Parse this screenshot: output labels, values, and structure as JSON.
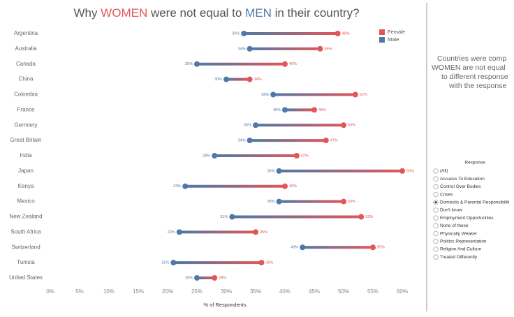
{
  "chart_data": {
    "type": "dumbbell",
    "title": [
      "Why ",
      "WOMEN",
      " were not equal to ",
      "MEN",
      " in their country?"
    ],
    "x_label": "% of Respondents",
    "categories": [
      "Argentina",
      "Australia",
      "Canada",
      "China",
      "Colombia",
      "France",
      "Germany",
      "Great Britain",
      "India",
      "Japan",
      "Kenya",
      "Mexico",
      "New Zealand",
      "South Africa",
      "Switzerland",
      "Tunisia",
      "United States"
    ],
    "series": [
      {
        "name": "Female",
        "color": "#e15759",
        "values": [
          49,
          46,
          40,
          34,
          52,
          45,
          50,
          47,
          42,
          60,
          40,
          50,
          53,
          35,
          55,
          36,
          28
        ],
        "value_labels": [
          "49%",
          "46%",
          "40%",
          "34%",
          "52%",
          "45%",
          "50%",
          "47%",
          "42%",
          "60%",
          "40%",
          "50%",
          "53%",
          "35%",
          "55%",
          "36%",
          "28%"
        ]
      },
      {
        "name": "Male",
        "color": "#4e79a7",
        "values": [
          33,
          34,
          25,
          30,
          38,
          40,
          35,
          34,
          28,
          39,
          23,
          39,
          31,
          22,
          43,
          21,
          25
        ],
        "value_labels": [
          "33%",
          "34%",
          "25%",
          "30%",
          "38%",
          "40%",
          "35%",
          "34%",
          "28%",
          "39%",
          "23%",
          "39%",
          "31%",
          "22%",
          "43%",
          "21%",
          "25%"
        ]
      }
    ],
    "xlim": [
      0,
      60
    ],
    "xticks": [
      {
        "value": 0,
        "label": "0%"
      },
      {
        "value": 5,
        "label": "5%"
      },
      {
        "value": 10,
        "label": "10%"
      },
      {
        "value": 15,
        "label": "15%"
      },
      {
        "value": 20,
        "label": "20%"
      },
      {
        "value": 25,
        "label": "25%"
      },
      {
        "value": 30,
        "label": "30%"
      },
      {
        "value": 35,
        "label": "35%"
      },
      {
        "value": 40,
        "label": "40%"
      },
      {
        "value": 45,
        "label": "45%"
      },
      {
        "value": 50,
        "label": "50%"
      },
      {
        "value": 55,
        "label": "55%"
      },
      {
        "value": 60,
        "label": "60%"
      }
    ],
    "legend": "top-right"
  },
  "side_note": [
    "Countries were comp",
    "WOMEN are not equal",
    "to different response",
    "with the response"
  ],
  "filter": {
    "title": "Response",
    "selected": 4,
    "options": [
      "(All)",
      "Accuess To Education",
      "Control Over Bodies",
      "Crises",
      "Domestic & Parental Responsibiliti",
      "Don't know",
      "Employment Opportunities",
      "None of these",
      "Physically Weaker",
      "Politics Representation",
      "Religion And Culture",
      "Treated Differently"
    ]
  }
}
